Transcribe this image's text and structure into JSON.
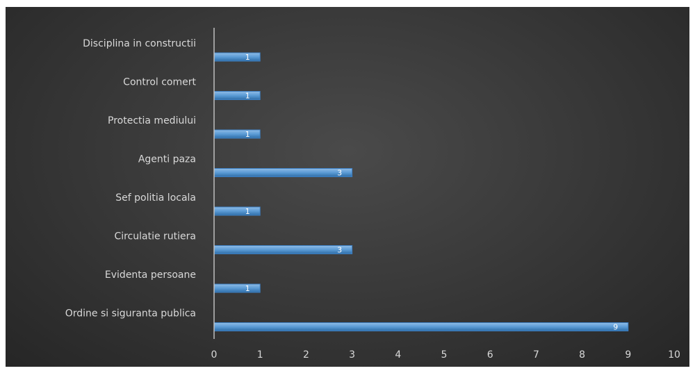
{
  "chart_data": {
    "type": "bar",
    "orientation": "horizontal",
    "categories": [
      "Disciplina in constructii",
      "Control comert",
      "Protectia mediului",
      "Agenti paza",
      "Sef politia locala",
      "Circulatie rutiera",
      "Evidenta persoane",
      "Ordine si siguranta publica"
    ],
    "values": [
      1,
      1,
      1,
      3,
      1,
      3,
      1,
      9
    ],
    "xlim": [
      0,
      10
    ],
    "xticks": [
      0,
      1,
      2,
      3,
      4,
      5,
      6,
      7,
      8,
      9,
      10
    ],
    "grid": false,
    "legend": "none",
    "colors": {
      "background": "#333333",
      "bar": "#5b9bd5",
      "text": "#d9d9d9"
    }
  }
}
